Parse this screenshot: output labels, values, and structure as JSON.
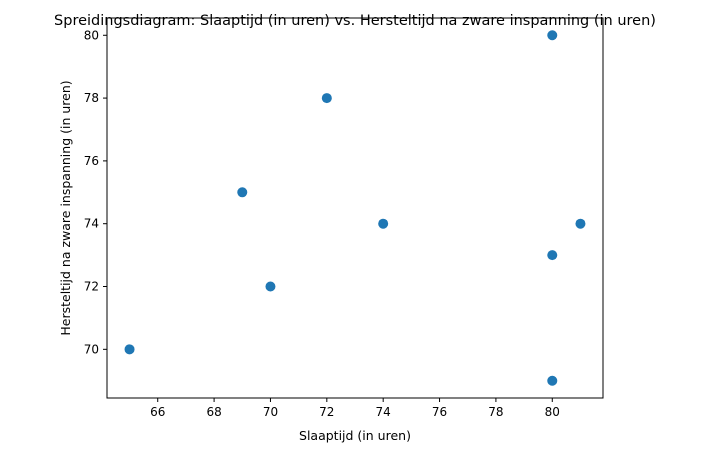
{
  "chart_data": {
    "type": "scatter",
    "title": "Spreidingsdiagram: Slaaptijd (in uren) vs. Hersteltijd na zware inspanning (in uren)",
    "xlabel": "Slaaptijd (in uren)",
    "ylabel": "Hersteltijd na zware inspanning (in uren)",
    "xlim": [
      64.2,
      81.8
    ],
    "ylim": [
      68.45,
      80.55
    ],
    "xticks": [
      66,
      68,
      70,
      72,
      74,
      76,
      78,
      80
    ],
    "yticks": [
      70,
      72,
      74,
      76,
      78,
      80
    ],
    "grid": false,
    "marker_color": "#1f77b4",
    "series": [
      {
        "points": [
          {
            "x": 65,
            "y": 70
          },
          {
            "x": 69,
            "y": 75
          },
          {
            "x": 70,
            "y": 72
          },
          {
            "x": 72,
            "y": 78
          },
          {
            "x": 74,
            "y": 74
          },
          {
            "x": 80,
            "y": 80
          },
          {
            "x": 80,
            "y": 73
          },
          {
            "x": 80,
            "y": 69
          },
          {
            "x": 81,
            "y": 74
          }
        ]
      }
    ]
  }
}
